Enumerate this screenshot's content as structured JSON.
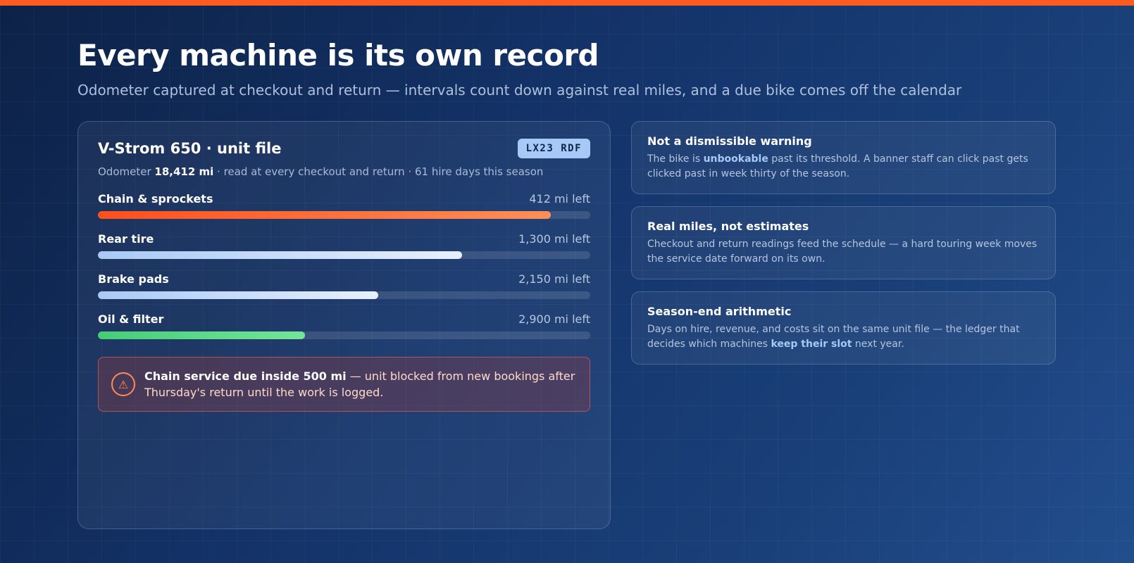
{
  "header": {
    "title": "Every machine is its own record",
    "subtitle": "Odometer captured at checkout and return — intervals count down against real miles, and a due bike comes off the calendar"
  },
  "unit": {
    "title": "V-Strom 650 · unit file",
    "plate": "LX23 RDF",
    "meta_prefix": "Odometer ",
    "odometer": "18,412 mi",
    "meta_suffix": " · read at every checkout and return · 61 hire days this season",
    "intervals": [
      {
        "name": "Chain & sprockets",
        "left": "412 mi left",
        "fill": 0.92,
        "style": "hot"
      },
      {
        "name": "Rear tire",
        "left": "1,300 mi left",
        "fill": 0.74,
        "style": "cool"
      },
      {
        "name": "Brake pads",
        "left": "2,150 mi left",
        "fill": 0.57,
        "style": "cool"
      },
      {
        "name": "Oil & filter",
        "left": "2,900 mi left",
        "fill": 0.42,
        "style": "ok"
      }
    ],
    "alert": {
      "icon": "warning-triangle-icon",
      "strong": "Chain service due inside 500 mi",
      "rest": " — unit blocked from new bookings after Thursday's return until the work is logged."
    }
  },
  "notes": [
    {
      "title": "Not a dismissible warning",
      "body_1": "The bike is ",
      "highlight": "unbookable",
      "body_2": " past its threshold. A banner staff can click past gets clicked past in week thirty of the season."
    },
    {
      "title": "Real miles, not estimates",
      "body": "Checkout and return readings feed the schedule — a hard touring week moves the service date forward on its own."
    },
    {
      "title": "Season-end arithmetic",
      "body_1": "Days on hire, revenue, and costs sit on the same unit file — the ledger that decides which machines ",
      "highlight": "keep their slot",
      "body_2": " next year."
    }
  ],
  "colors": {
    "accent": "#ff5a1f",
    "highlight": "#a7c9f7",
    "ok": "#44cd76",
    "warn": "#ff8a5c"
  }
}
